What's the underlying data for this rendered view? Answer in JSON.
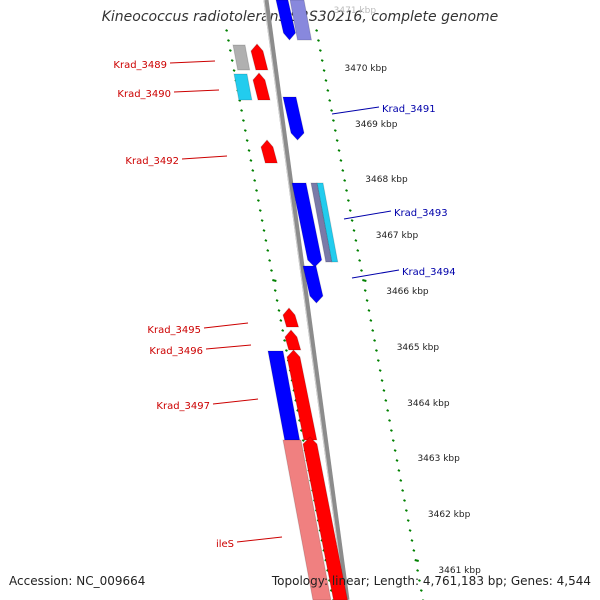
{
  "title": "Kineococcus radiotolerans SRS30216, complete genome",
  "footer": {
    "accession": "Accession: NC_009664",
    "summary": "Topology: linear; Length: 4,761,183 bp; Genes: 4,544"
  },
  "colors": {
    "forward": "#ff0000",
    "forward_light": "#f08080",
    "reverse": "#0000ff",
    "reverse_light": "#8888dd",
    "grey": "#b0b0b0",
    "cyan": "#22ccee",
    "scale": "#008000",
    "backbone": "#8c8c8c",
    "fwd_label": "#cc0000",
    "rev_label": "#0000aa"
  },
  "scale_labels": [
    "3471 kbp",
    "3470 kbp",
    "3469 kbp",
    "3468 kbp",
    "3467 kbp",
    "3466 kbp",
    "3465 kbp",
    "3464 kbp",
    "3463 kbp",
    "3462 kbp",
    "3461 kbp"
  ],
  "gene_labels_forward": [
    "Krad_3489",
    "Krad_3490",
    "Krad_3492",
    "Krad_3495",
    "Krad_3496",
    "Krad_3497",
    "ileS"
  ],
  "gene_labels_reverse": [
    "Krad_3491",
    "Krad_3493",
    "Krad_3494"
  ]
}
